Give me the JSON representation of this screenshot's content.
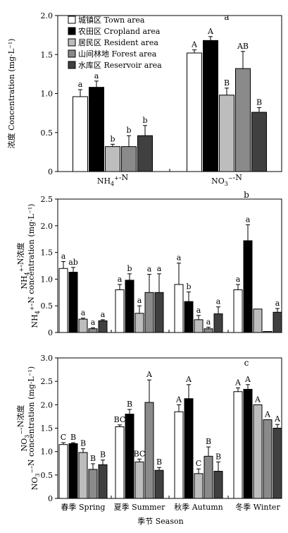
{
  "colors": {
    "town": "#ffffff",
    "cropland": "#000000",
    "resident": "#bdbdbd",
    "forest": "#8a8a8a",
    "reservoir": "#404040"
  },
  "legend": [
    {
      "key": "town",
      "label": "城镇区 Town area"
    },
    {
      "key": "cropland",
      "label": "农田区 Cropland area"
    },
    {
      "key": "resident",
      "label": "居民区 Resident area"
    },
    {
      "key": "forest",
      "label": "山间林地 Forest area"
    },
    {
      "key": "reservoir",
      "label": "水库区 Reservoir area"
    }
  ],
  "xlabel": "季节 Season",
  "chart_data": [
    {
      "panel": "a",
      "type": "bar",
      "categories": [
        "NH4+-N",
        "NO3−-N"
      ],
      "ylabel": "浓度 Concentration (mg·L⁻¹)",
      "ylim": [
        0,
        2.0
      ],
      "yticks": [
        "0",
        "0.5",
        "1.0",
        "1.5",
        "2.0"
      ],
      "series": [
        {
          "name": "城镇区 Town area",
          "key": "town",
          "values": [
            0.96,
            1.52
          ],
          "errors": [
            0.09,
            0.04
          ],
          "labels": [
            "a",
            "A"
          ]
        },
        {
          "name": "农田区 Cropland area",
          "key": "cropland",
          "values": [
            1.08,
            1.68
          ],
          "errors": [
            0.08,
            0.05
          ],
          "labels": [
            "a",
            "A"
          ]
        },
        {
          "name": "居民区 Resident area",
          "key": "resident",
          "values": [
            0.32,
            0.98
          ],
          "errors": [
            0.03,
            0.09
          ],
          "labels": [
            "b",
            "B"
          ]
        },
        {
          "name": "山间林地 Forest area",
          "key": "forest",
          "values": [
            0.32,
            1.32
          ],
          "errors": [
            0.14,
            0.22
          ],
          "labels": [
            "b",
            "AB"
          ]
        },
        {
          "name": "水库区 Reservoir area",
          "key": "reservoir",
          "values": [
            0.46,
            0.76
          ],
          "errors": [
            0.13,
            0.06
          ],
          "labels": [
            "b",
            "B"
          ]
        }
      ]
    },
    {
      "panel": "b",
      "type": "bar",
      "categories": [
        "春季 Spring",
        "夏季 Summer",
        "秋季 Autumn",
        "冬季 Winter"
      ],
      "ylabel": "NH4+-N浓度 NH4+-N concentration (mg·L⁻¹)",
      "ylim": [
        0,
        2.5
      ],
      "yticks": [
        "0",
        "0.5",
        "1.0",
        "1.5",
        "2.0",
        "2.5"
      ],
      "series": [
        {
          "name": "城镇区 Town area",
          "key": "town",
          "values": [
            1.2,
            0.8,
            0.9,
            0.8
          ],
          "errors": [
            0.13,
            0.1,
            0.4,
            0.1
          ],
          "labels": [
            "a",
            "a",
            "a",
            "a"
          ]
        },
        {
          "name": "农田区 Cropland area",
          "key": "cropland",
          "values": [
            1.13,
            0.98,
            0.58,
            1.72
          ],
          "errors": [
            0.09,
            0.12,
            0.18,
            0.3
          ],
          "labels": [
            "ab",
            "b",
            "b",
            "a"
          ]
        },
        {
          "name": "居民区 Resident area",
          "key": "resident",
          "values": [
            0.25,
            0.36,
            0.24,
            0.44
          ],
          "errors": [
            0.02,
            0.14,
            0.08,
            0.0
          ],
          "labels": [
            "a",
            "a",
            "a",
            ""
          ]
        },
        {
          "name": "山间林地 Forest area",
          "key": "forest",
          "values": [
            0.07,
            0.75,
            0.07,
            0.02
          ],
          "errors": [
            0.02,
            0.34,
            0.03,
            0.0
          ],
          "labels": [
            "a",
            "a",
            "a",
            ""
          ]
        },
        {
          "name": "水库区 Reservoir area",
          "key": "reservoir",
          "values": [
            0.22,
            0.75,
            0.35,
            0.38
          ],
          "errors": [
            0.02,
            0.35,
            0.13,
            0.07
          ],
          "labels": [
            "a",
            "a",
            "a",
            "a"
          ]
        }
      ]
    },
    {
      "panel": "c",
      "type": "bar",
      "categories": [
        "春季 Spring",
        "夏季 Summer",
        "秋季 Autumn",
        "冬季 Winter"
      ],
      "ylabel": "NO3−-N浓度 NO3−-N concentration (mg·L⁻¹)",
      "ylim": [
        0,
        3.0
      ],
      "yticks": [
        "0",
        "0.5",
        "1.0",
        "1.5",
        "2.0",
        "2.5",
        "3.0"
      ],
      "series": [
        {
          "name": "城镇区 Town area",
          "key": "town",
          "values": [
            1.15,
            1.53,
            1.85,
            2.28
          ],
          "errors": [
            0.04,
            0.04,
            0.15,
            0.08
          ],
          "labels": [
            "C",
            "BC",
            "A",
            "A"
          ]
        },
        {
          "name": "农田区 Cropland area",
          "key": "cropland",
          "values": [
            1.17,
            1.8,
            2.13,
            2.33
          ],
          "errors": [
            0.02,
            0.1,
            0.3,
            0.1
          ],
          "labels": [
            "B",
            "B",
            "A",
            "A"
          ]
        },
        {
          "name": "居民区 Resident area",
          "key": "resident",
          "values": [
            0.98,
            0.78,
            0.53,
            2.0
          ],
          "errors": [
            0.08,
            0.06,
            0.1,
            0.0
          ],
          "labels": [
            "B",
            "BC",
            "C",
            "A"
          ]
        },
        {
          "name": "山间林地 Forest area",
          "key": "forest",
          "values": [
            0.62,
            2.05,
            0.9,
            1.68
          ],
          "errors": [
            0.12,
            0.48,
            0.2,
            0.0
          ],
          "labels": [
            "B",
            "A",
            "B",
            "A"
          ]
        },
        {
          "name": "水库区 Reservoir area",
          "key": "reservoir",
          "values": [
            0.72,
            0.6,
            0.58,
            1.5
          ],
          "errors": [
            0.1,
            0.06,
            0.2,
            0.08
          ],
          "labels": [
            "B",
            "B",
            "B",
            "A"
          ]
        }
      ]
    }
  ]
}
